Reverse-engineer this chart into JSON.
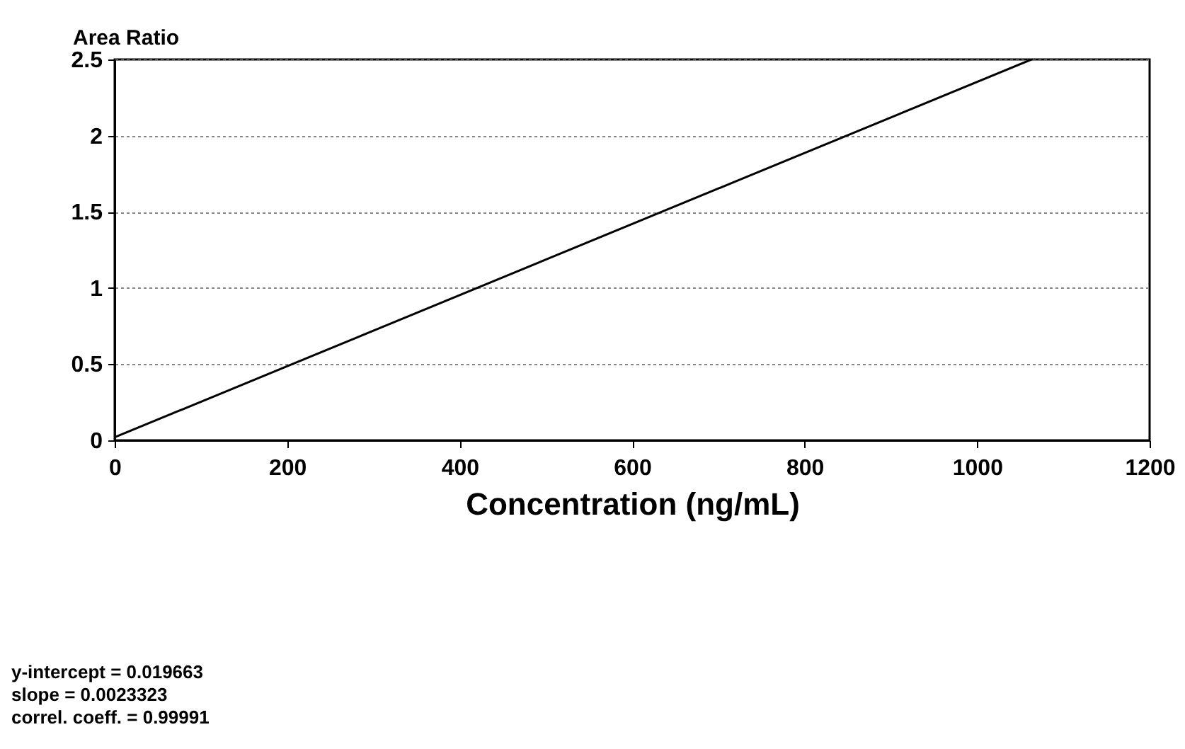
{
  "chart_data": {
    "type": "line",
    "xlabel": "Concentration (ng/mL)",
    "ylabel": "Area Ratio",
    "x": [
      0,
      1063
    ],
    "series": [
      {
        "color": "#000000",
        "values": [
          0.02,
          2.5
        ]
      }
    ],
    "xlim": [
      0,
      1200
    ],
    "xticks": [
      0,
      200,
      400,
      600,
      800,
      1000,
      1200
    ],
    "ylim": [
      0,
      2.5
    ],
    "yticks": [
      0,
      0.5,
      1,
      1.5,
      2,
      2.5
    ],
    "grid": "y",
    "annotations": [
      "y-intercept = 0.019663",
      "slope = 0.0023323",
      "correl. coeff. = 0.99991"
    ]
  }
}
